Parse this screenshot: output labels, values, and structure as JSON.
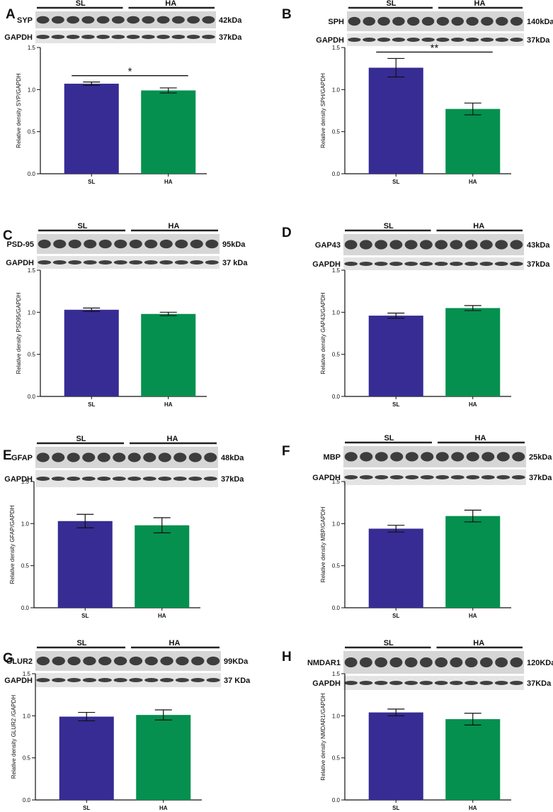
{
  "colors": {
    "SL": "#372c93",
    "HA": "#05904f",
    "axis": "#111111",
    "blot_bg": "#d6d6d6",
    "band": "#222222"
  },
  "chart_data": [
    {
      "panel": "A",
      "type": "bar",
      "categories": [
        "SL",
        "HA"
      ],
      "values": [
        1.07,
        0.99
      ],
      "errors": [
        0.02,
        0.03
      ],
      "ylabel": "Relative density SYP/GAPDH",
      "ylim": [
        0,
        1.5
      ],
      "yticks": [
        "0.0",
        "0.5",
        "1.0",
        "1.5"
      ],
      "significance": "*",
      "blot": {
        "group_labels": [
          "SL",
          "HA"
        ],
        "target": "SYP",
        "target_size": "42kDa",
        "control": "GAPDH",
        "control_size": "37kDa"
      }
    },
    {
      "panel": "B",
      "type": "bar",
      "categories": [
        "SL",
        "HA"
      ],
      "values": [
        1.26,
        0.77
      ],
      "errors": [
        0.11,
        0.07
      ],
      "ylabel": "Relative density SPH/GAPDH",
      "ylim": [
        0,
        1.5
      ],
      "yticks": [
        "0.0",
        "0.5",
        "1.0",
        "1.5"
      ],
      "significance": "**",
      "blot": {
        "group_labels": [
          "SL",
          "HA"
        ],
        "target": "SPH",
        "target_size": "140kDa",
        "control": "GAPDH",
        "control_size": "37kDa"
      }
    },
    {
      "panel": "C",
      "type": "bar",
      "categories": [
        "SL",
        "HA"
      ],
      "values": [
        1.03,
        0.98
      ],
      "errors": [
        0.02,
        0.02
      ],
      "ylabel": "Relative density PSD95/GAPDH",
      "ylim": [
        0,
        1.5
      ],
      "yticks": [
        "0.0",
        "0.5",
        "1.0",
        "1.5"
      ],
      "significance": "",
      "blot": {
        "group_labels": [
          "SL",
          "HA"
        ],
        "target": "PSD-95",
        "target_size": "95kDa",
        "control": "GAPDH",
        "control_size": "37 kDa"
      }
    },
    {
      "panel": "D",
      "type": "bar",
      "categories": [
        "SL",
        "HA"
      ],
      "values": [
        0.96,
        1.05
      ],
      "errors": [
        0.03,
        0.03
      ],
      "ylabel": "Relative  density GAP43/GAPDH",
      "ylim": [
        0,
        1.5
      ],
      "yticks": [
        "0.0",
        "0.5",
        "1.0",
        "1.5"
      ],
      "significance": "",
      "blot": {
        "group_labels": [
          "SL",
          "HA"
        ],
        "target": "GAP43",
        "target_size": "43kDa",
        "control": "GAPDH",
        "control_size": "37kDa"
      }
    },
    {
      "panel": "E",
      "type": "bar",
      "categories": [
        "SL",
        "HA"
      ],
      "values": [
        1.03,
        0.98
      ],
      "errors": [
        0.08,
        0.09
      ],
      "ylabel": "Relative density GFAP/GAPDH",
      "ylim": [
        0,
        1.5
      ],
      "yticks": [
        "0.0",
        "0.5",
        "1.0",
        "1.5"
      ],
      "significance": "",
      "blot": {
        "group_labels": [
          "SL",
          "HA"
        ],
        "target": "GFAP",
        "target_size": "48kDa",
        "control": "GAPDH",
        "control_size": "37kDa"
      }
    },
    {
      "panel": "F",
      "type": "bar",
      "categories": [
        "SL",
        "HA"
      ],
      "values": [
        0.94,
        1.09
      ],
      "errors": [
        0.04,
        0.07
      ],
      "ylabel": "Relative density MBP/GAPDH",
      "ylim": [
        0,
        1.5
      ],
      "yticks": [
        "0.0",
        "0.5",
        "1.0",
        "1.5"
      ],
      "significance": "",
      "blot": {
        "group_labels": [
          "SL",
          "HA"
        ],
        "target": "MBP",
        "target_size": "25kDa",
        "control": "GAPDH",
        "control_size": "37kDa"
      }
    },
    {
      "panel": "G",
      "type": "bar",
      "categories": [
        "SL",
        "HA"
      ],
      "values": [
        0.99,
        1.01
      ],
      "errors": [
        0.05,
        0.06
      ],
      "ylabel": "Relative density GLUR2 /GAPDH",
      "ylim": [
        0,
        1.5
      ],
      "yticks": [
        "0.0",
        "0.5",
        "1.0",
        "1.5"
      ],
      "significance": "",
      "blot": {
        "group_labels": [
          "SL",
          "HA"
        ],
        "target": "GLUR2",
        "target_size": "99KDa",
        "control": "GAPDH",
        "control_size": "37 KDa"
      }
    },
    {
      "panel": "H",
      "type": "bar",
      "categories": [
        "SL",
        "HA"
      ],
      "values": [
        1.04,
        0.96
      ],
      "errors": [
        0.04,
        0.07
      ],
      "ylabel": "Relative density NMDAR1/GAPDH",
      "ylim": [
        0,
        1.5
      ],
      "yticks": [
        "0.0",
        "0.5",
        "1.0",
        "1.5"
      ],
      "significance": "",
      "blot": {
        "group_labels": [
          "SL",
          "HA"
        ],
        "target": "NMDAR1",
        "target_size": "120KDa",
        "control": "GAPDH",
        "control_size": "37KDa"
      }
    }
  ]
}
